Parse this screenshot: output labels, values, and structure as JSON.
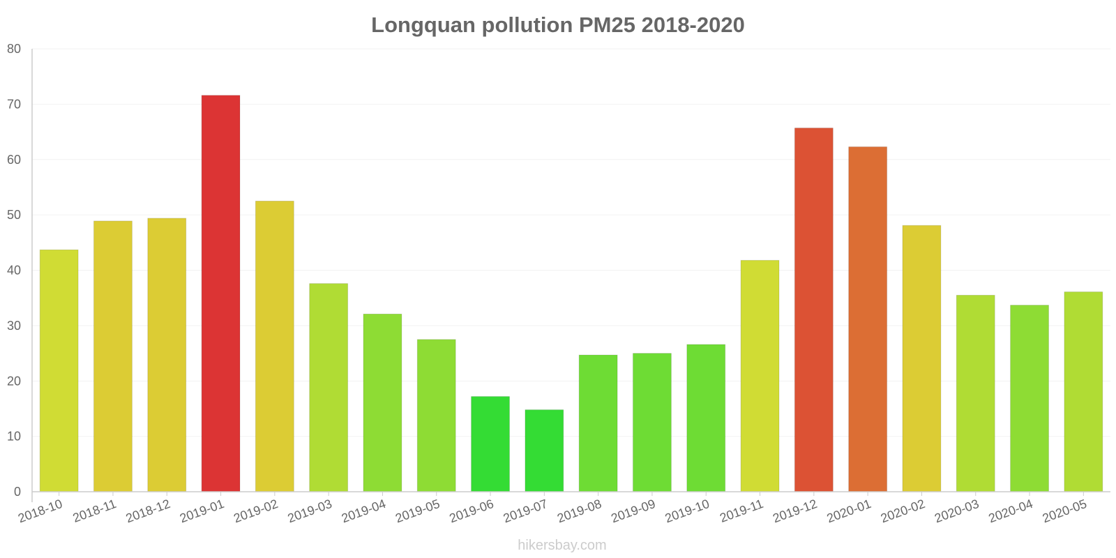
{
  "chart_data": {
    "type": "bar",
    "title": "Longquan pollution PM25 2018-2020",
    "xlabel": "",
    "ylabel": "",
    "ylim": [
      0,
      80
    ],
    "yticks": [
      0,
      10,
      20,
      30,
      40,
      50,
      60,
      70,
      80
    ],
    "grid": true,
    "categories": [
      "2018-10",
      "2018-11",
      "2018-12",
      "2019-01",
      "2019-02",
      "2019-03",
      "2019-04",
      "2019-05",
      "2019-06",
      "2019-07",
      "2019-08",
      "2019-09",
      "2019-10",
      "2019-11",
      "2019-12",
      "2020-01",
      "2020-02",
      "2020-03",
      "2020-04",
      "2020-05"
    ],
    "values": [
      43.7,
      48.9,
      49.4,
      71.6,
      52.5,
      37.6,
      32.1,
      27.5,
      17.2,
      14.8,
      24.7,
      25.0,
      26.6,
      41.8,
      65.7,
      62.3,
      48.1,
      35.5,
      33.7,
      36.1
    ],
    "colors": [
      "#d0dc34",
      "#dccc34",
      "#dccc34",
      "#dc3434",
      "#dccc34",
      "#b0dc34",
      "#8edc34",
      "#8edc34",
      "#34dc34",
      "#34dc34",
      "#6edc34",
      "#6edc34",
      "#6edc34",
      "#d0dc34",
      "#dc5234",
      "#dc6e34",
      "#dccc34",
      "#b0dc34",
      "#8edc34",
      "#b0dc34"
    ]
  },
  "watermark": "hikersbay.com"
}
